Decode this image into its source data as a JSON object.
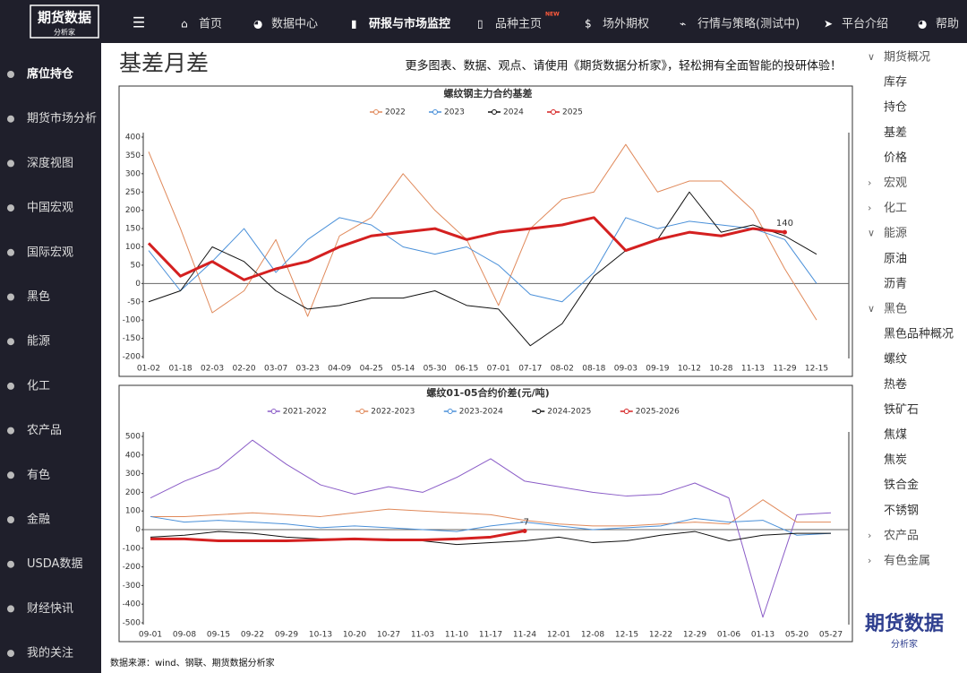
{
  "logo": {
    "title": "期货数据",
    "subtitle": "分析家"
  },
  "nav": [
    {
      "label": "首页"
    },
    {
      "label": "数据中心"
    },
    {
      "label": "研报与市场监控",
      "active": true
    },
    {
      "label": "品种主页",
      "badge": "NEW"
    },
    {
      "label": "场外期权"
    },
    {
      "label": "行情与策略(测试中)"
    },
    {
      "label": "平台介绍"
    },
    {
      "label": "帮助"
    }
  ],
  "sidebar": [
    {
      "label": "席位持仓",
      "active": true
    },
    {
      "label": "期货市场分析"
    },
    {
      "label": "深度视图"
    },
    {
      "label": "中国宏观"
    },
    {
      "label": "国际宏观"
    },
    {
      "label": "黑色"
    },
    {
      "label": "能源"
    },
    {
      "label": "化工"
    },
    {
      "label": "农产品"
    },
    {
      "label": "有色"
    },
    {
      "label": "金融"
    },
    {
      "label": "USDA数据"
    },
    {
      "label": "财经快讯"
    },
    {
      "label": "我的关注"
    }
  ],
  "header": {
    "title": "基差月差",
    "banner": "更多图表、数据、观点、请使用《期货数据分析家》，轻松拥有全面智能的投研体验！"
  },
  "right_menu": [
    {
      "label": "期货概况",
      "kind": "open"
    },
    {
      "label": "库存",
      "kind": "leaf"
    },
    {
      "label": "持仓",
      "kind": "leaf"
    },
    {
      "label": "基差",
      "kind": "leaf"
    },
    {
      "label": "价格",
      "kind": "leaf"
    },
    {
      "label": "宏观",
      "kind": "closed"
    },
    {
      "label": "化工",
      "kind": "closed"
    },
    {
      "label": "能源",
      "kind": "open"
    },
    {
      "label": "原油",
      "kind": "leaf"
    },
    {
      "label": "沥青",
      "kind": "leaf"
    },
    {
      "label": "黑色",
      "kind": "open"
    },
    {
      "label": "黑色品种概况",
      "kind": "leaf"
    },
    {
      "label": "螺纹",
      "kind": "leaf"
    },
    {
      "label": "热卷",
      "kind": "leaf"
    },
    {
      "label": "铁矿石",
      "kind": "leaf"
    },
    {
      "label": "焦煤",
      "kind": "leaf"
    },
    {
      "label": "焦炭",
      "kind": "leaf"
    },
    {
      "label": "铁合金",
      "kind": "leaf"
    },
    {
      "label": "不锈钢",
      "kind": "leaf"
    },
    {
      "label": "农产品",
      "kind": "closed"
    },
    {
      "label": "有色金属",
      "kind": "closed"
    }
  ],
  "chart_data": [
    {
      "type": "line",
      "title": "螺纹钢主力合约基差",
      "categories": [
        "01-02",
        "01-18",
        "02-03",
        "02-20",
        "03-07",
        "03-23",
        "04-09",
        "04-25",
        "05-14",
        "05-30",
        "06-15",
        "07-01",
        "07-17",
        "08-02",
        "08-18",
        "09-03",
        "09-19",
        "10-12",
        "10-28",
        "11-13",
        "11-29",
        "12-15"
      ],
      "series": [
        {
          "name": "2022",
          "color": "#e0895a",
          "line_width": 1,
          "values": [
            360,
            150,
            -80,
            -20,
            120,
            -90,
            130,
            180,
            300,
            200,
            120,
            -60,
            150,
            230,
            250,
            380,
            250,
            280,
            280,
            200,
            40,
            -100
          ]
        },
        {
          "name": "2023",
          "color": "#4a90d9",
          "line_width": 1,
          "values": [
            90,
            -20,
            60,
            150,
            30,
            120,
            180,
            160,
            100,
            80,
            100,
            50,
            -30,
            -50,
            30,
            180,
            150,
            170,
            160,
            150,
            120,
            0
          ]
        },
        {
          "name": "2024",
          "color": "#111111",
          "line_width": 1,
          "values": [
            -50,
            -20,
            100,
            60,
            -20,
            -70,
            -60,
            -40,
            -40,
            -20,
            -60,
            -70,
            -170,
            -110,
            20,
            90,
            120,
            250,
            140,
            160,
            130,
            80
          ]
        },
        {
          "name": "2025",
          "color": "#d42020",
          "line_width": 3,
          "values": [
            110,
            20,
            60,
            10,
            40,
            60,
            100,
            130,
            140,
            150,
            120,
            140,
            150,
            160,
            180,
            90,
            120,
            140,
            130,
            150,
            140,
            null
          ]
        }
      ],
      "annotation": "140",
      "ylim": [
        -200,
        400
      ],
      "yticks": [
        -200,
        -150,
        -100,
        -50,
        0,
        50,
        100,
        150,
        200,
        250,
        300,
        350,
        400
      ]
    },
    {
      "type": "line",
      "title": "螺纹01-05合约价差(元/吨)",
      "categories": [
        "09-01",
        "09-08",
        "09-15",
        "09-22",
        "09-29",
        "10-13",
        "10-20",
        "10-27",
        "11-03",
        "11-10",
        "11-17",
        "11-24",
        "12-01",
        "12-08",
        "12-15",
        "12-22",
        "12-29",
        "01-06",
        "01-13",
        "05-20",
        "05-27"
      ],
      "series": [
        {
          "name": "2021-2022",
          "color": "#8a5cc7",
          "line_width": 1,
          "values": [
            170,
            260,
            330,
            480,
            350,
            240,
            190,
            230,
            200,
            280,
            380,
            260,
            230,
            200,
            180,
            190,
            250,
            170,
            -470,
            80,
            90
          ]
        },
        {
          "name": "2022-2023",
          "color": "#e0895a",
          "line_width": 1,
          "values": [
            70,
            70,
            80,
            90,
            80,
            70,
            90,
            110,
            100,
            90,
            80,
            50,
            30,
            20,
            20,
            30,
            40,
            30,
            160,
            40,
            40
          ]
        },
        {
          "name": "2023-2024",
          "color": "#4a90d9",
          "line_width": 1,
          "values": [
            70,
            40,
            50,
            40,
            30,
            10,
            20,
            10,
            0,
            -10,
            20,
            40,
            20,
            0,
            10,
            20,
            60,
            40,
            50,
            -30,
            -20
          ]
        },
        {
          "name": "2024-2025",
          "color": "#111111",
          "line_width": 1,
          "values": [
            -40,
            -30,
            -10,
            -20,
            -40,
            -50,
            -50,
            -50,
            -60,
            -80,
            -70,
            -60,
            -40,
            -70,
            -60,
            -30,
            -10,
            -60,
            -30,
            -20,
            -20
          ]
        },
        {
          "name": "2025-2026",
          "color": "#d42020",
          "line_width": 3,
          "values": [
            -50,
            -50,
            -60,
            -60,
            -60,
            -55,
            -50,
            -55,
            -55,
            -50,
            -40,
            -7,
            null,
            null,
            null,
            null,
            null,
            null,
            null,
            null,
            null
          ]
        }
      ],
      "annotation": "-7",
      "ylim": [
        -500,
        500
      ],
      "yticks": [
        -500,
        -400,
        -300,
        -200,
        -100,
        0,
        100,
        200,
        300,
        400,
        500
      ]
    }
  ],
  "footer": "数据来源：wind、钢联、期货数据分析家"
}
